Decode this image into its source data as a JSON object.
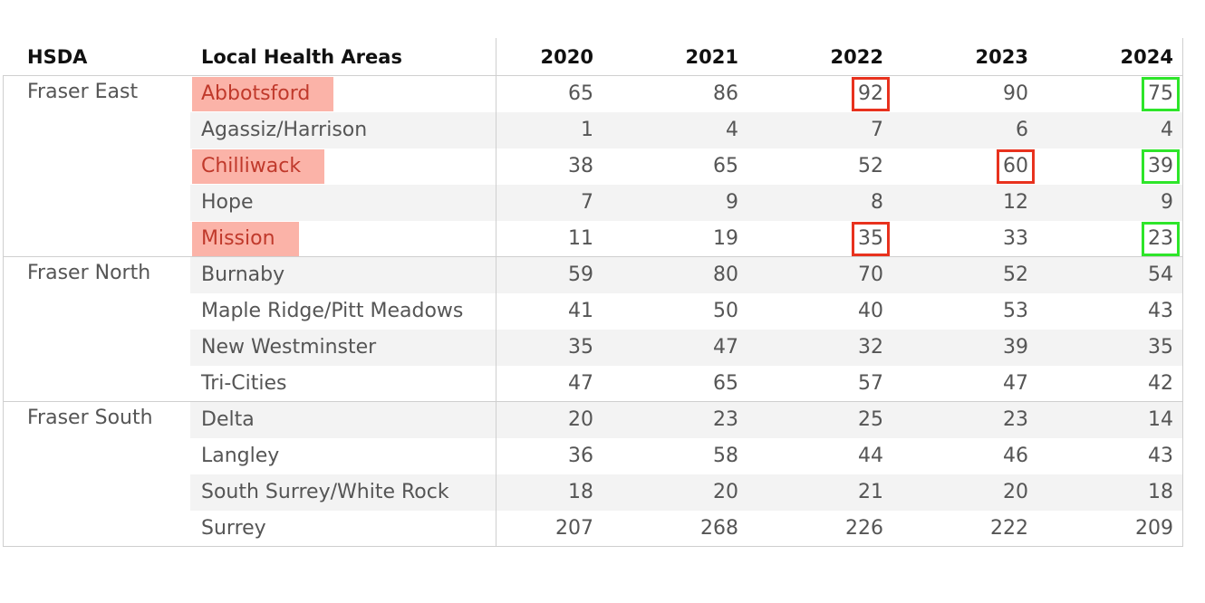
{
  "table": {
    "columns": [
      "HSDA",
      "Local Health Areas",
      "2020",
      "2021",
      "2022",
      "2023",
      "2024"
    ],
    "highlight_color": "#fbb3a8",
    "outline_colors": {
      "red": "#e8321e",
      "green": "#2ee52a"
    },
    "groups": [
      {
        "hsda": "Fraser East",
        "rows": [
          {
            "area": "Abbotsford",
            "values": [
              "65",
              "86",
              "92",
              "90",
              "75"
            ],
            "highlight": true,
            "outlines": [
              null,
              null,
              "red",
              null,
              "green"
            ]
          },
          {
            "area": "Agassiz/Harrison",
            "values": [
              "1",
              "4",
              "7",
              "6",
              "4"
            ]
          },
          {
            "area": "Chilliwack",
            "values": [
              "38",
              "65",
              "52",
              "60",
              "39"
            ],
            "highlight": true,
            "outlines": [
              null,
              null,
              null,
              "red",
              "green"
            ]
          },
          {
            "area": "Hope",
            "values": [
              "7",
              "9",
              "8",
              "12",
              "9"
            ]
          },
          {
            "area": "Mission",
            "values": [
              "11",
              "19",
              "35",
              "33",
              "23"
            ],
            "highlight": true,
            "outlines": [
              null,
              null,
              "red",
              null,
              "green"
            ]
          }
        ]
      },
      {
        "hsda": "Fraser North",
        "rows": [
          {
            "area": "Burnaby",
            "values": [
              "59",
              "80",
              "70",
              "52",
              "54"
            ]
          },
          {
            "area": "Maple Ridge/Pitt Meadows",
            "values": [
              "41",
              "50",
              "40",
              "53",
              "43"
            ]
          },
          {
            "area": "New Westminster",
            "values": [
              "35",
              "47",
              "32",
              "39",
              "35"
            ]
          },
          {
            "area": "Tri-Cities",
            "values": [
              "47",
              "65",
              "57",
              "47",
              "42"
            ]
          }
        ]
      },
      {
        "hsda": "Fraser South",
        "rows": [
          {
            "area": "Delta",
            "values": [
              "20",
              "23",
              "25",
              "23",
              "14"
            ]
          },
          {
            "area": "Langley",
            "values": [
              "36",
              "58",
              "44",
              "46",
              "43"
            ]
          },
          {
            "area": "South Surrey/White Rock",
            "values": [
              "18",
              "20",
              "21",
              "20",
              "18"
            ]
          },
          {
            "area": "Surrey",
            "values": [
              "207",
              "268",
              "226",
              "222",
              "209"
            ]
          }
        ]
      }
    ]
  }
}
